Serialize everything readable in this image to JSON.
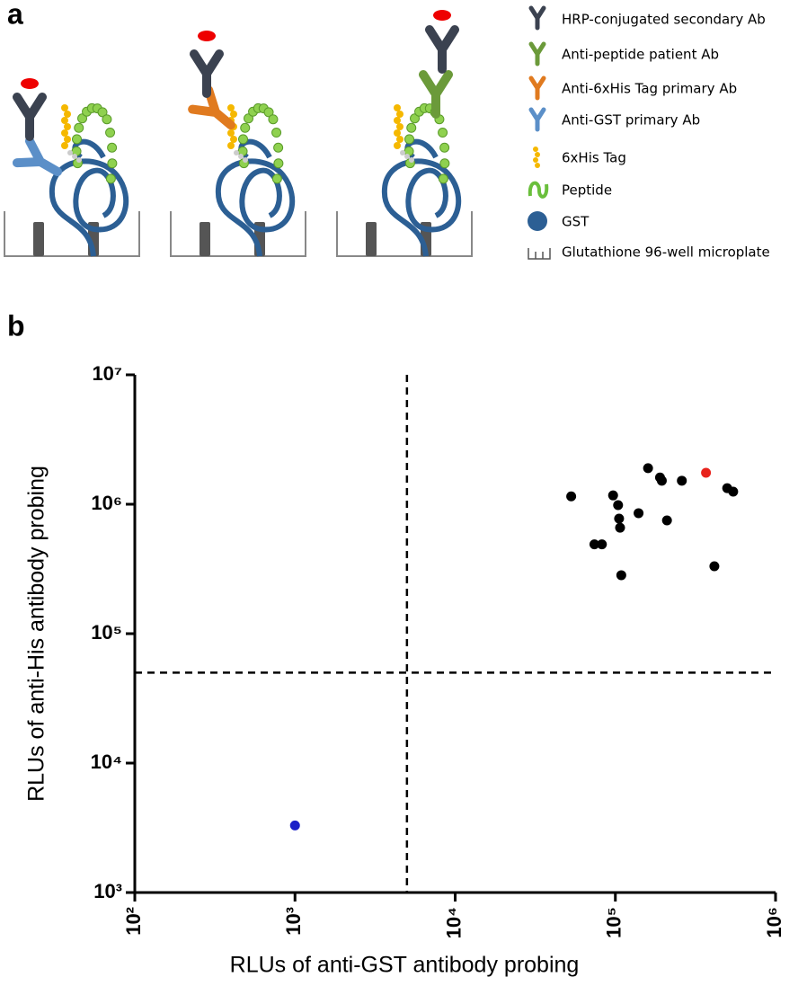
{
  "panel_labels": [
    "a",
    "b"
  ],
  "diagram": {
    "legend": [
      "HRP-conjugated secondary Ab",
      "Anti-peptide patient  Ab",
      "Anti-6xHis Tag primary  Ab",
      "Anti-GST primary  Ab",
      "6xHis Tag",
      "Peptide",
      "GST",
      "Glutathione 96-well microplate"
    ]
  },
  "chart_data": {
    "type": "scatter",
    "x_label": "RLUs of anti-GST antibody probing",
    "y_label": "RLUs of anti-His antibody probing",
    "xscale": "log",
    "yscale": "log",
    "xlim": [
      100,
      1000000
    ],
    "ylim": [
      1000,
      10000000
    ],
    "xticks": [
      {
        "value": 100,
        "label": "10²"
      },
      {
        "value": 1000,
        "label": "10³"
      },
      {
        "value": 10000,
        "label": "10⁴"
      },
      {
        "value": 100000,
        "label": "10⁵"
      },
      {
        "value": 1000000,
        "label": "10⁶"
      }
    ],
    "yticks": [
      {
        "value": 1000,
        "label": "10³"
      },
      {
        "value": 10000,
        "label": "10⁴"
      },
      {
        "value": 100000,
        "label": "10⁵"
      },
      {
        "value": 1000000,
        "label": "10⁶"
      },
      {
        "value": 10000000,
        "label": "10⁷"
      }
    ],
    "reference_lines": {
      "x": 5000,
      "y": 50000
    },
    "series": [
      {
        "color": "#000000",
        "x": [
          53000,
          74000,
          82400,
          96800,
          104000,
          105500,
          107000,
          108900,
          139600,
          160000,
          190000,
          195000,
          210000,
          260000,
          415000,
          499000,
          544000
        ],
        "values": [
          1150000,
          490000,
          490000,
          1170000,
          984000,
          774000,
          659000,
          283000,
          853000,
          1900000,
          1610000,
          1520000,
          750000,
          1520000,
          332000,
          1330000,
          1250000
        ]
      },
      {
        "color": "#e8231c",
        "x": [
          368000
        ],
        "values": [
          1750000
        ]
      },
      {
        "color": "#1b20c8",
        "x": [
          1000
        ],
        "values": [
          3300
        ]
      }
    ]
  }
}
